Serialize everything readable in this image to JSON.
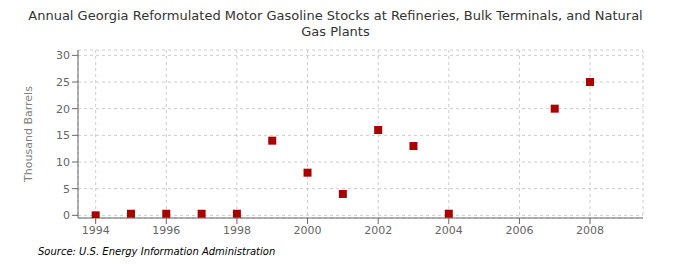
{
  "chart_data": {
    "type": "scatter",
    "title": "Annual Georgia Reformulated Motor Gasoline Stocks at Refineries, Bulk Terminals, and Natural\nGas Plants",
    "ylabel": "Thousand Barrels",
    "annotations": [
      "Source: U.S. Energy Information Administration"
    ],
    "x": [
      1994,
      1995,
      1996,
      1997,
      1998,
      1999,
      2000,
      2001,
      2002,
      2003,
      2004,
      2007,
      2008
    ],
    "values": [
      0,
      0.3,
      0.3,
      0.3,
      0.3,
      14,
      8,
      4,
      16,
      13,
      0.3,
      20,
      25
    ],
    "color": "#aa0000",
    "marker": "square",
    "xlim": [
      1993.5,
      2009.5
    ],
    "ylim": [
      -0.5,
      31
    ],
    "xticks": [
      1994,
      1996,
      1998,
      2000,
      2002,
      2004,
      2006,
      2008
    ],
    "yticks": [
      0,
      5,
      10,
      15,
      20,
      25,
      30
    ],
    "grid": true
  }
}
